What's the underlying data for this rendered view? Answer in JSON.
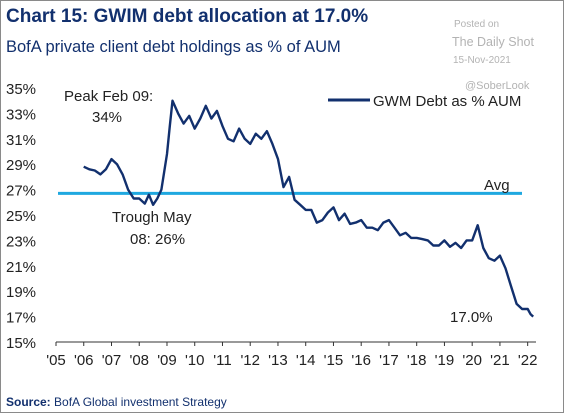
{
  "header": {
    "title": "Chart 15: GWIM debt allocation at 17.0%",
    "subtitle": "BofA private client debt holdings as % of AUM"
  },
  "watermark": {
    "posted": "Posted on",
    "site": "The Daily Shot",
    "date": "15-Nov-2021",
    "handle": "@SoberLook"
  },
  "footer": {
    "source_label": "Source:",
    "source_text": " BofA Global investment Strategy"
  },
  "colors": {
    "series": "#12306e",
    "avg_line": "#1fa8e0",
    "text": "#12306e",
    "axis_text": "#222222"
  },
  "chart_data": {
    "type": "line",
    "title": "Chart 15: GWIM debt allocation at 17.0%",
    "subtitle": "BofA private client debt holdings as % of AUM",
    "xlabel": "",
    "ylabel": "",
    "ylim": [
      15,
      35
    ],
    "xlim": [
      2005,
      2022.3
    ],
    "y_ticks": [
      "35%",
      "33%",
      "31%",
      "29%",
      "27%",
      "25%",
      "23%",
      "21%",
      "19%",
      "17%",
      "15%"
    ],
    "x_ticks": [
      "'05",
      "'06",
      "'07",
      "'08",
      "'09",
      "'10",
      "'11",
      "'12",
      "'13",
      "'14",
      "'15",
      "'16",
      "'17",
      "'18",
      "'19",
      "'20",
      "'21",
      "'22"
    ],
    "grid": false,
    "legend": {
      "position": "top-right",
      "entries": [
        "GWM Debt as % AUM"
      ]
    },
    "series": [
      {
        "name": "GWM Debt as % AUM",
        "x": [
          2006.0,
          2006.2,
          2006.4,
          2006.6,
          2006.8,
          2007.0,
          2007.2,
          2007.4,
          2007.6,
          2007.8,
          2008.0,
          2008.2,
          2008.35,
          2008.5,
          2008.65,
          2008.8,
          2009.0,
          2009.1,
          2009.2,
          2009.4,
          2009.6,
          2009.8,
          2010.0,
          2010.2,
          2010.4,
          2010.6,
          2010.8,
          2011.0,
          2011.2,
          2011.4,
          2011.6,
          2011.8,
          2012.0,
          2012.2,
          2012.4,
          2012.6,
          2012.8,
          2013.0,
          2013.2,
          2013.4,
          2013.6,
          2013.8,
          2014.0,
          2014.2,
          2014.4,
          2014.6,
          2014.8,
          2015.0,
          2015.2,
          2015.4,
          2015.6,
          2015.8,
          2016.0,
          2016.2,
          2016.4,
          2016.6,
          2016.8,
          2017.0,
          2017.2,
          2017.4,
          2017.6,
          2017.8,
          2018.0,
          2018.2,
          2018.4,
          2018.6,
          2018.8,
          2019.0,
          2019.2,
          2019.4,
          2019.6,
          2019.8,
          2020.0,
          2020.2,
          2020.4,
          2020.6,
          2020.8,
          2021.0,
          2021.2,
          2021.4,
          2021.6,
          2021.8,
          2022.0,
          2022.1,
          2022.2
        ],
        "values": [
          28.8,
          28.6,
          28.5,
          28.2,
          28.6,
          29.4,
          29.0,
          28.2,
          27.0,
          26.3,
          26.3,
          25.9,
          26.6,
          25.8,
          26.3,
          27.0,
          29.8,
          32.0,
          34.0,
          33.0,
          32.2,
          32.8,
          31.8,
          32.6,
          33.6,
          32.6,
          33.2,
          32.0,
          31.0,
          30.8,
          31.8,
          31.0,
          30.6,
          31.4,
          31.0,
          31.6,
          30.6,
          29.4,
          27.2,
          28.0,
          26.2,
          25.8,
          25.4,
          25.4,
          24.4,
          24.6,
          25.2,
          25.6,
          24.6,
          25.1,
          24.3,
          24.4,
          24.6,
          24.0,
          24.0,
          23.8,
          24.4,
          24.6,
          24.0,
          23.4,
          23.6,
          23.2,
          23.2,
          23.1,
          23.0,
          22.6,
          22.6,
          23.0,
          22.5,
          22.8,
          22.4,
          23.0,
          23.0,
          24.2,
          22.4,
          21.6,
          21.4,
          21.8,
          20.8,
          19.4,
          18.0,
          17.6,
          17.6,
          17.2,
          17.0
        ]
      },
      {
        "name": "Avg",
        "values": [
          26.7,
          26.7
        ]
      }
    ],
    "annotations": [
      {
        "text": "Peak Feb 09:",
        "x": 2009.1,
        "y": 34.0
      },
      {
        "text": "34%"
      },
      {
        "text": "Trough May",
        "x": 2008.35,
        "y": 26.0
      },
      {
        "text": "08: 26%"
      },
      {
        "text": "Avg",
        "y": 26.7
      },
      {
        "text": "17.0%",
        "x": 2022.2,
        "y": 17.0
      }
    ]
  }
}
